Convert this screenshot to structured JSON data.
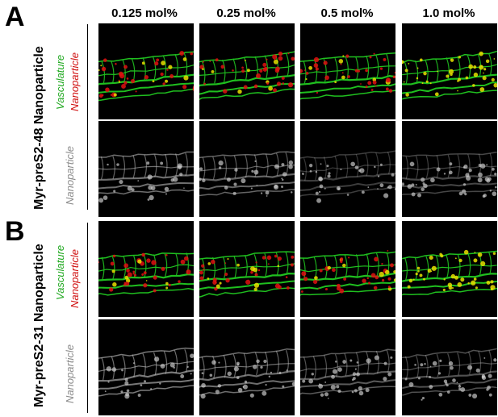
{
  "columns": [
    "0.125 mol%",
    "0.25 mol%",
    "0.5 mol%",
    "1.0 mol%"
  ],
  "panels": [
    {
      "letter": "A",
      "title": "Myr-preS2-48 Nanoparticle",
      "merge_labels": {
        "vasculature": "Vasculature",
        "nanoparticle": "Nanoparticle"
      },
      "mono_label": "Nanoparticle"
    },
    {
      "letter": "B",
      "title": "Myr-preS2-31 Nanoparticle",
      "merge_labels": {
        "vasculature": "Vasculature",
        "nanoparticle": "Nanoparticle"
      },
      "mono_label": "Nanoparticle"
    }
  ],
  "colors": {
    "vasculature": "#1fbf1f",
    "nanoparticle": "#e01010",
    "overlap": "#e8e000",
    "grayscale": "#c8c8c8",
    "background": "#000000"
  }
}
